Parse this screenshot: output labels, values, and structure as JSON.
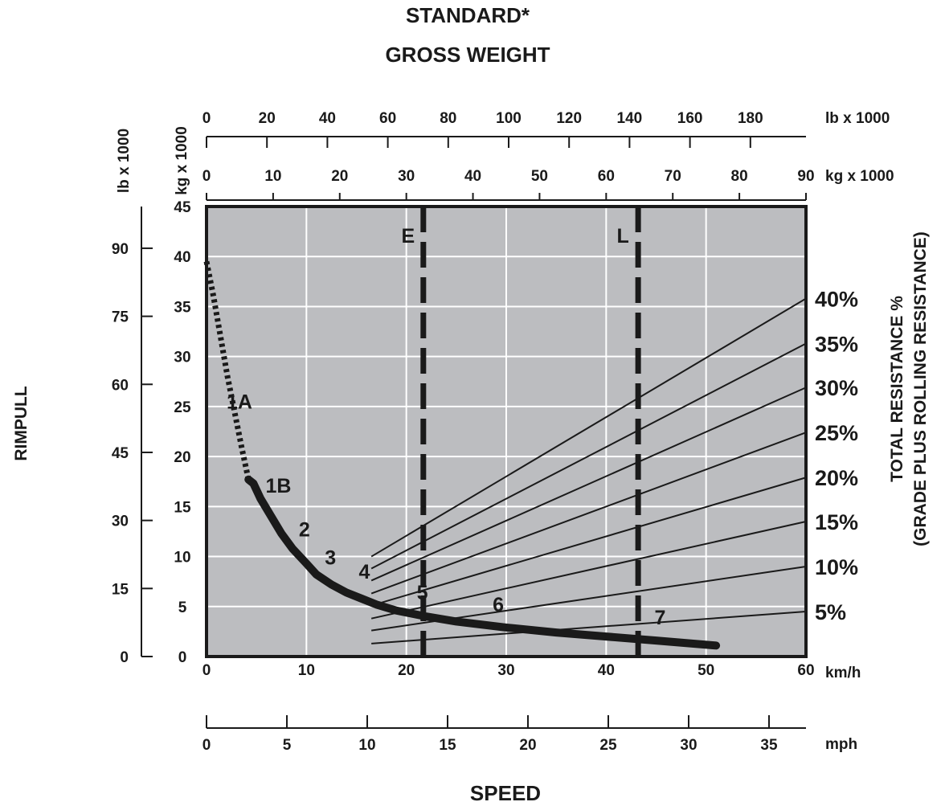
{
  "chart_data": {
    "type": "line",
    "title": [
      "STANDARD*",
      "GROSS WEIGHT"
    ],
    "xlabel": "SPEED",
    "ylabel": "RIMPULL",
    "right_label": [
      "TOTAL RESISTANCE %",
      "(GRADE PLUS ROLLING RESISTANCE)"
    ],
    "grid": true,
    "x_axis": {
      "unit": "km/h",
      "range": [
        0,
        60
      ],
      "ticks": [
        0,
        10,
        20,
        30,
        40,
        50,
        60
      ]
    },
    "x2_axis": {
      "unit": "mph",
      "range": [
        0,
        37.3
      ],
      "ticks": [
        0,
        5,
        10,
        15,
        20,
        25,
        30,
        35
      ]
    },
    "y_axis": {
      "unit": "kg x 1000",
      "range": [
        0,
        45
      ],
      "ticks": [
        0,
        5,
        10,
        15,
        20,
        25,
        30,
        35,
        40,
        45
      ]
    },
    "y2_axis": {
      "unit": "lb x 1000",
      "range": [
        0,
        99.2
      ],
      "ticks": [
        0,
        15,
        30,
        45,
        60,
        75,
        90
      ]
    },
    "gw_kg_axis": {
      "unit": "kg x 1000",
      "range": [
        0,
        90
      ],
      "ticks": [
        0,
        10,
        20,
        30,
        40,
        50,
        60,
        70,
        80,
        90
      ]
    },
    "gw_lb_axis": {
      "unit": "lb x 1000",
      "range": [
        0,
        198.4
      ],
      "ticks": [
        0,
        20,
        40,
        60,
        80,
        100,
        120,
        140,
        160,
        180
      ]
    },
    "vertical_markers": [
      {
        "label": "E",
        "x": 21.7
      },
      {
        "label": "L",
        "x": 43.2
      }
    ],
    "resistance_lines": [
      {
        "label": "40%",
        "x0": 16.5,
        "y0": 10.0,
        "x1": 60,
        "y1": 35.8
      },
      {
        "label": "35%",
        "x0": 16.5,
        "y0": 8.8,
        "x1": 60,
        "y1": 31.3
      },
      {
        "label": "30%",
        "x0": 16.5,
        "y0": 7.6,
        "x1": 60,
        "y1": 26.9
      },
      {
        "label": "25%",
        "x0": 16.5,
        "y0": 6.3,
        "x1": 60,
        "y1": 22.4
      },
      {
        "label": "20%",
        "x0": 16.5,
        "y0": 5.1,
        "x1": 60,
        "y1": 17.9
      },
      {
        "label": "15%",
        "x0": 16.5,
        "y0": 3.8,
        "x1": 60,
        "y1": 13.5
      },
      {
        "label": "10%",
        "x0": 16.5,
        "y0": 2.6,
        "x1": 60,
        "y1": 9.0
      },
      {
        "label": "5%",
        "x0": 16.5,
        "y0": 1.3,
        "x1": 60,
        "y1": 4.5
      }
    ],
    "rimpull_curve": {
      "dotted": {
        "x": [
          0,
          0.7,
          1.4,
          2.1,
          2.8,
          3.5,
          4.2
        ],
        "y": [
          39.5,
          36.0,
          32.0,
          28.0,
          24.5,
          21.0,
          17.7
        ]
      },
      "solid": {
        "x": [
          4.2,
          4.7,
          5.4,
          6.3,
          7.5,
          8.6,
          10.0,
          11.0,
          12.5,
          14.0,
          15.5,
          17.0,
          19.0,
          22.0,
          25.0,
          30.0,
          35.0,
          40.0,
          45.0,
          51.0
        ],
        "y": [
          17.7,
          17.3,
          15.8,
          14.3,
          12.3,
          10.8,
          9.3,
          8.2,
          7.2,
          6.4,
          5.8,
          5.2,
          4.6,
          4.0,
          3.5,
          2.9,
          2.4,
          2.0,
          1.6,
          1.1
        ]
      }
    },
    "gear_labels": [
      {
        "label": "1A",
        "x": 3.3,
        "y": 24.8
      },
      {
        "label": "1B",
        "x": 7.2,
        "y": 16.4
      },
      {
        "label": "2",
        "x": 9.8,
        "y": 12.0
      },
      {
        "label": "3",
        "x": 12.4,
        "y": 9.2
      },
      {
        "label": "4",
        "x": 15.8,
        "y": 7.8
      },
      {
        "label": "5",
        "x": 21.6,
        "y": 5.7
      },
      {
        "label": "6",
        "x": 29.2,
        "y": 4.5
      },
      {
        "label": "7",
        "x": 45.4,
        "y": 3.2
      }
    ]
  }
}
